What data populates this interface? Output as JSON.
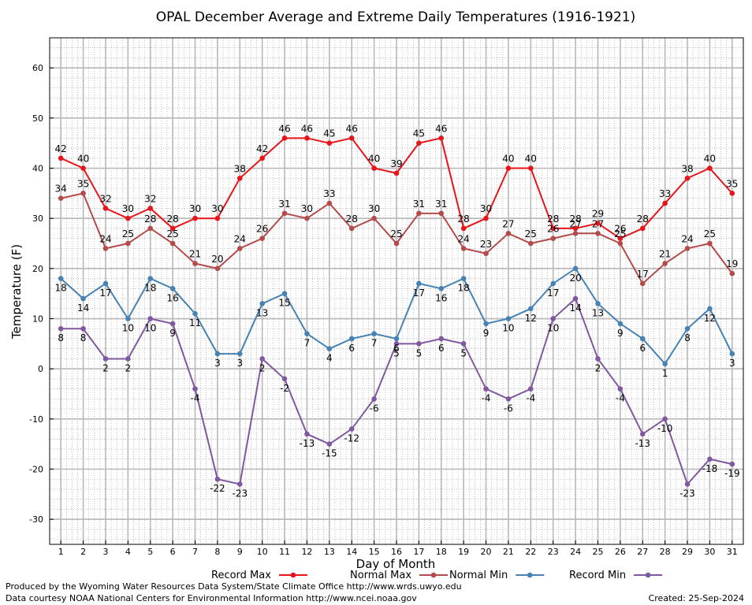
{
  "chart_data": {
    "type": "line",
    "title": "OPAL December Average and Extreme Daily Temperatures (1916-1921)",
    "xlabel": "Day of Month",
    "ylabel": "Temperature (F)",
    "xlim": [
      0.5,
      31.5
    ],
    "ylim": [
      -35,
      66
    ],
    "yticks": [
      -30,
      -20,
      -10,
      0,
      10,
      20,
      30,
      40,
      50,
      60
    ],
    "x": [
      1,
      2,
      3,
      4,
      5,
      6,
      7,
      8,
      9,
      10,
      11,
      12,
      13,
      14,
      15,
      16,
      17,
      18,
      19,
      20,
      21,
      22,
      23,
      24,
      25,
      26,
      27,
      28,
      29,
      30,
      31
    ],
    "grid": true,
    "legend_position": "bottom",
    "series": [
      {
        "name": "Record Max",
        "color": "#e8141a",
        "label_position": "above",
        "values": [
          42,
          40,
          32,
          30,
          32,
          28,
          30,
          30,
          38,
          42,
          46,
          46,
          45,
          46,
          40,
          39,
          45,
          46,
          28,
          30,
          40,
          40,
          28,
          28,
          29,
          26,
          28,
          33,
          38,
          40,
          35
        ]
      },
      {
        "name": "Normal Max",
        "color": "#b44b4b",
        "label_position": "above",
        "values": [
          34,
          35,
          24,
          25,
          28,
          25,
          21,
          20,
          24,
          26,
          31,
          30,
          33,
          28,
          30,
          25,
          31,
          31,
          24,
          23,
          27,
          25,
          26,
          27,
          27,
          25,
          17,
          21,
          24,
          25,
          19
        ]
      },
      {
        "name": "Normal Min",
        "color": "#4682b4",
        "label_position": "below",
        "values": [
          18,
          14,
          17,
          10,
          18,
          16,
          11,
          3,
          3,
          13,
          15,
          7,
          4,
          6,
          7,
          6,
          17,
          16,
          18,
          9,
          10,
          12,
          17,
          20,
          13,
          9,
          6,
          1,
          8,
          12,
          3
        ]
      },
      {
        "name": "Record Min",
        "color": "#8058a0",
        "label_position": "below",
        "values": [
          8,
          8,
          2,
          2,
          10,
          9,
          -4,
          -22,
          -23,
          2,
          -2,
          -13,
          -15,
          -12,
          -6,
          5,
          5,
          6,
          5,
          -4,
          -6,
          -4,
          10,
          14,
          2,
          -4,
          -13,
          -10,
          -23,
          -18,
          -19
        ]
      }
    ]
  },
  "footer": {
    "produced_by": "Produced by the Wyoming Water Resources Data System/State Climate Office http://www.wrds.uwyo.edu",
    "courtesy": "Data courtesy NOAA National Centers for Environmental Information http://www.ncei.noaa.gov",
    "created": "Created:  25-Sep-2024"
  }
}
